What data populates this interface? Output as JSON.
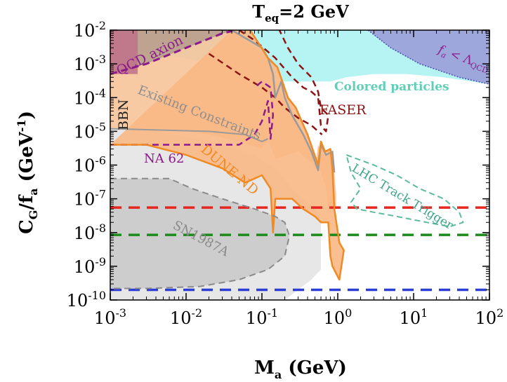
{
  "chart_data": {
    "type": "line",
    "title": "T",
    "title_sub": "eq",
    "title_rest": "=2 GeV",
    "xlabel": "M",
    "xlabel_sub": "a",
    "xlabel_unit": " (GeV)",
    "ylabel": "C",
    "ylabel_sub1": "G",
    "ylabel_mid": "/f",
    "ylabel_sub2": "a",
    "ylabel_unit": " (GeV",
    "ylabel_unit_sup": "-1",
    "ylabel_close": ")",
    "x_scale": "log",
    "y_scale": "log",
    "xlim": [
      0.001,
      100
    ],
    "ylim": [
      1e-10,
      0.01
    ],
    "x_ticks": [
      {
        "value": 0.001,
        "base": "10",
        "exp": "-3"
      },
      {
        "value": 0.01,
        "base": "10",
        "exp": "-2"
      },
      {
        "value": 0.1,
        "base": "10",
        "exp": "-1"
      },
      {
        "value": 1,
        "base": "10",
        "exp": "0"
      },
      {
        "value": 10,
        "base": "10",
        "exp": "1"
      },
      {
        "value": 100,
        "base": "10",
        "exp": "2"
      }
    ],
    "y_ticks": [
      {
        "value": 1e-10,
        "base": "10",
        "exp": "-10"
      },
      {
        "value": 1e-09,
        "base": "10",
        "exp": "-9"
      },
      {
        "value": 1e-08,
        "base": "10",
        "exp": "-8"
      },
      {
        "value": 1e-07,
        "base": "10",
        "exp": "-7"
      },
      {
        "value": 1e-06,
        "base": "10",
        "exp": "-6"
      },
      {
        "value": 1e-05,
        "base": "10",
        "exp": "-5"
      },
      {
        "value": 0.0001,
        "base": "10",
        "exp": "-4"
      },
      {
        "value": 0.001,
        "base": "10",
        "exp": "-3"
      },
      {
        "value": 0.01,
        "base": "10",
        "exp": "-2"
      }
    ],
    "hlines": [
      {
        "y": 5.5e-08,
        "color": "#e8261f"
      },
      {
        "y": 8.5e-09,
        "color": "#1c8a1c"
      },
      {
        "y": 2e-10,
        "color": "#2b3fd6"
      }
    ],
    "annotations": {
      "qcd_axion": "QCD axion",
      "bbn": "BBN",
      "existing": "Existing Constraints",
      "na62": "NA 62",
      "dune": "DUNE ND",
      "faser": "FASER",
      "colored": "Colored particles",
      "lhc": "LHC Track Trigger",
      "sn": "SN1987A",
      "fa_f": "f",
      "fa_sub": "a",
      "fa_lt": " < Λ",
      "fa_qcd": "QCD"
    },
    "regions": {
      "colored": {
        "color": "#aef3f3",
        "points": [
          [
            0.001,
            0.01
          ],
          [
            100,
            0.01
          ],
          [
            100,
            0.00025
          ],
          [
            25,
            0.0004
          ],
          [
            8,
            0.0005
          ],
          [
            3,
            0.0005
          ],
          [
            1.3,
            0.0004
          ],
          [
            0.8,
            0.0003
          ],
          [
            0.5,
            0.0003
          ],
          [
            0.2,
            0.0003
          ],
          [
            0.1,
            0.0005
          ],
          [
            0.03,
            0.001
          ],
          [
            0.001,
            0.003
          ]
        ]
      },
      "fa_region": {
        "color": "#9b9fd8",
        "points": [
          [
            2.5,
            0.01
          ],
          [
            100,
            0.01
          ],
          [
            100,
            0.00025
          ],
          [
            40,
            0.0004
          ],
          [
            12,
            0.001
          ],
          [
            5,
            0.003
          ],
          [
            2.5,
            0.01
          ]
        ]
      },
      "existing": {
        "color": "#f6c49a",
        "points": [
          [
            0.001,
            0.01
          ],
          [
            0.04,
            0.01
          ],
          [
            0.12,
            0.0015
          ],
          [
            0.14,
            0.0005
          ],
          [
            0.2,
            7e-05
          ],
          [
            0.25,
            3e-05
          ],
          [
            0.35,
            8e-06
          ],
          [
            0.45,
            2.5e-06
          ],
          [
            0.5,
            7e-07
          ],
          [
            0.55,
            4e-06
          ],
          [
            0.65,
            2e-06
          ],
          [
            0.8,
            2.5e-06
          ],
          [
            0.9,
            6e-07
          ],
          [
            0.95,
            1.5e-07
          ],
          [
            0.95,
            5e-08
          ],
          [
            0.75,
            5e-08
          ],
          [
            0.7,
            2e-07
          ],
          [
            0.6,
            6e-07
          ],
          [
            0.55,
            1.2e-06
          ],
          [
            0.5,
            1e-06
          ],
          [
            0.3,
            2.5e-06
          ],
          [
            0.15,
            1.5e-06
          ],
          [
            0.12,
            6e-06
          ],
          [
            0.1,
            3e-06
          ],
          [
            0.05,
            5e-06
          ],
          [
            0.02,
            8e-06
          ],
          [
            0.01,
            1e-05
          ],
          [
            0.005,
            1.2e-05
          ],
          [
            0.001,
            1.2e-05
          ]
        ]
      },
      "dune": {
        "color": "#f9b885",
        "points": [
          [
            0.04,
            0.01
          ],
          [
            0.07,
            0.01
          ],
          [
            0.12,
            0.0015
          ],
          [
            0.16,
            0.0008
          ],
          [
            0.22,
            0.0001
          ],
          [
            0.28,
            5e-05
          ],
          [
            0.4,
            8e-06
          ],
          [
            0.55,
            1e-06
          ],
          [
            0.6,
            5e-06
          ],
          [
            0.68,
            2.5e-06
          ],
          [
            0.8,
            3e-06
          ],
          [
            0.85,
            8e-07
          ],
          [
            0.9,
            5e-08
          ],
          [
            1.05,
            5e-09
          ],
          [
            1.2,
            3e-09
          ],
          [
            1.05,
            4e-10
          ],
          [
            0.85,
            1e-09
          ],
          [
            0.8,
            2e-09
          ],
          [
            0.75,
            2e-08
          ],
          [
            0.6,
            2e-08
          ],
          [
            0.5,
            3e-08
          ],
          [
            0.35,
            5e-08
          ],
          [
            0.25,
            1e-07
          ],
          [
            0.15,
            1e-07
          ],
          [
            0.14,
            1e-08
          ],
          [
            0.13,
            2e-07
          ],
          [
            0.1,
            5e-07
          ],
          [
            0.06,
            3e-07
          ],
          [
            0.03,
            8e-07
          ],
          [
            0.01,
            2e-06
          ],
          [
            0.003,
            4e-06
          ],
          [
            0.001,
            4e-06
          ]
        ]
      },
      "qcd_axion": {
        "color": "#b8a08e",
        "points": [
          [
            0.001,
            0.01
          ],
          [
            0.04,
            0.01
          ],
          [
            0.01,
            0.003
          ],
          [
            0.003,
            0.001
          ],
          [
            0.001,
            0.0005
          ]
        ]
      },
      "bbn": {
        "color": "#c0748a",
        "points": [
          [
            0.001,
            0.01
          ],
          [
            0.0023,
            0.01
          ],
          [
            0.0023,
            0.0005
          ],
          [
            0.001,
            0.0005
          ]
        ]
      },
      "sn": {
        "color": "#c8c8c8",
        "points": [
          [
            0.001,
            4e-07
          ],
          [
            0.006,
            4e-07
          ],
          [
            0.012,
            2e-07
          ],
          [
            0.03,
            1e-07
          ],
          [
            0.08,
            5e-08
          ],
          [
            0.15,
            3e-08
          ],
          [
            0.2,
            2e-08
          ],
          [
            0.23,
            8e-09
          ],
          [
            0.2,
            2e-09
          ],
          [
            0.12,
            8e-10
          ],
          [
            0.05,
            4e-10
          ],
          [
            0.015,
            2.5e-10
          ],
          [
            0.003,
            2.2e-10
          ],
          [
            0.001,
            2.2e-10
          ]
        ]
      },
      "light_gray": {
        "color": "#e4e4e4",
        "points": [
          [
            0.001,
            1.2e-05
          ],
          [
            0.003,
            1.2e-05
          ],
          [
            0.02,
            5e-06
          ],
          [
            0.08,
            2e-06
          ],
          [
            0.15,
            8e-07
          ],
          [
            0.25,
            2e-07
          ],
          [
            0.35,
            1e-07
          ],
          [
            0.5,
            5e-08
          ],
          [
            0.6,
            2e-08
          ],
          [
            0.6,
            8e-10
          ],
          [
            0.45,
            4e-10
          ],
          [
            0.3,
            2e-10
          ],
          [
            0.2,
            1e-10
          ],
          [
            0.001,
            1e-10
          ]
        ]
      }
    },
    "curves": {
      "qcd_axion": {
        "color": "#8b1a8b",
        "width": 3,
        "dash": "10,6",
        "points": [
          [
            0.001,
            0.0005
          ],
          [
            0.003,
            0.001
          ],
          [
            0.01,
            0.003
          ],
          [
            0.03,
            0.008
          ],
          [
            0.045,
            0.01
          ]
        ]
      },
      "faser_outer": {
        "color": "#8b1414",
        "width": 2.5,
        "dash": "9,6",
        "points": [
          [
            0.05,
            0.01
          ],
          [
            0.08,
            0.005
          ],
          [
            0.15,
            0.0015
          ],
          [
            0.25,
            0.0004
          ],
          [
            0.35,
            0.0002
          ],
          [
            0.45,
            0.00015
          ],
          [
            0.55,
            0.0001
          ],
          [
            0.6,
            1.5e-05
          ],
          [
            0.7,
            1e-05
          ],
          [
            0.75,
            3e-05
          ],
          [
            0.6,
            5e-05
          ],
          [
            0.55,
            0.00015
          ],
          [
            0.45,
            0.0004
          ],
          [
            0.3,
            0.001
          ],
          [
            0.22,
            0.003
          ],
          [
            0.17,
            0.01
          ]
        ]
      },
      "faser_inner": {
        "color": "#8b1414",
        "width": 2.5,
        "dash": "9,6",
        "points": [
          [
            0.02,
            0.002
          ],
          [
            0.05,
            0.0005
          ],
          [
            0.1,
            0.0002
          ],
          [
            0.15,
            0.0001
          ],
          [
            0.2,
            5e-05
          ],
          [
            0.3,
            2.5e-05
          ],
          [
            0.45,
            1.5e-05
          ],
          [
            0.55,
            1e-05
          ],
          [
            0.62,
            8e-06
          ]
        ]
      },
      "na62": {
        "color": "#8b1a8b",
        "width": 2.5,
        "dash": "9,6",
        "points": [
          [
            0.001,
            4e-06
          ],
          [
            0.02,
            4e-06
          ],
          [
            0.05,
            4e-06
          ],
          [
            0.08,
            8e-06
          ],
          [
            0.1,
            2e-05
          ],
          [
            0.12,
            8e-05
          ],
          [
            0.13,
            6e-06
          ],
          [
            0.14,
            3e-05
          ],
          [
            0.13,
            0.0002
          ],
          [
            0.1,
            0.0003
          ],
          [
            0.08,
            0.0002
          ]
        ]
      },
      "existing": {
        "color": "#9a9a9a",
        "width": 2.5,
        "dash": "",
        "points": [
          [
            0.04,
            0.01
          ],
          [
            0.1,
            0.003
          ],
          [
            0.12,
            0.0015
          ],
          [
            0.14,
            0.0005
          ],
          [
            0.15,
            0.0001
          ],
          [
            0.18,
            0.0003
          ],
          [
            0.2,
            0.0001
          ],
          [
            0.25,
            3e-05
          ],
          [
            0.35,
            8e-06
          ],
          [
            0.45,
            2.5e-06
          ],
          [
            0.55,
            7e-07
          ],
          [
            0.6,
            4e-06
          ],
          [
            0.7,
            2e-06
          ],
          [
            0.85,
            2.5e-06
          ],
          [
            0.9,
            6e-07
          ]
        ]
      },
      "existing_low": {
        "color": "#9a9a9a",
        "width": 2,
        "dash": "",
        "points": [
          [
            0.001,
            1.2e-05
          ],
          [
            0.02,
            1e-05
          ],
          [
            0.06,
            8e-06
          ],
          [
            0.1,
            5e-06
          ],
          [
            0.12,
            6e-06
          ]
        ]
      },
      "dune_outline": {
        "color": "#f08a24",
        "width": 2.5,
        "dash": "",
        "points": [
          [
            0.07,
            0.01
          ],
          [
            0.12,
            0.0015
          ],
          [
            0.16,
            0.0008
          ],
          [
            0.22,
            0.0001
          ],
          [
            0.28,
            5e-05
          ],
          [
            0.4,
            8e-06
          ],
          [
            0.55,
            1e-06
          ],
          [
            0.6,
            5e-06
          ],
          [
            0.68,
            2.5e-06
          ],
          [
            0.8,
            3e-06
          ],
          [
            0.85,
            8e-07
          ],
          [
            0.9,
            5e-08
          ],
          [
            1.05,
            5e-09
          ],
          [
            1.2,
            3e-09
          ],
          [
            1.05,
            4e-10
          ],
          [
            0.85,
            1e-09
          ],
          [
            0.8,
            2e-09
          ],
          [
            0.75,
            2e-08
          ],
          [
            0.6,
            2e-08
          ],
          [
            0.5,
            3e-08
          ],
          [
            0.35,
            5e-08
          ],
          [
            0.25,
            1e-07
          ],
          [
            0.15,
            1e-07
          ],
          [
            0.14,
            1e-08
          ],
          [
            0.13,
            2e-07
          ],
          [
            0.1,
            5e-07
          ],
          [
            0.06,
            3e-07
          ],
          [
            0.03,
            8e-07
          ],
          [
            0.01,
            2e-06
          ],
          [
            0.003,
            4e-06
          ],
          [
            0.001,
            4e-06
          ]
        ]
      },
      "lhc": {
        "color": "#5bbaa0",
        "width": 2,
        "dash": "8,5",
        "points": [
          [
            1.3,
            2e-06
          ],
          [
            3,
            1e-06
          ],
          [
            6,
            5e-07
          ],
          [
            12,
            2e-07
          ],
          [
            25,
            1e-07
          ],
          [
            40,
            4e-08
          ],
          [
            45,
            2e-08
          ],
          [
            30,
            1.5e-08
          ],
          [
            15,
            2e-08
          ],
          [
            6,
            3e-08
          ],
          [
            3,
            4e-08
          ],
          [
            1.8,
            5e-08
          ],
          [
            1.5,
            8e-08
          ],
          [
            2,
            2e-07
          ],
          [
            1.5,
            6e-07
          ],
          [
            1.3,
            2e-06
          ]
        ]
      },
      "sn": {
        "color": "#8a8a8a",
        "width": 2,
        "dash": "9,6",
        "points": [
          [
            0.001,
            4e-07
          ],
          [
            0.006,
            4e-07
          ],
          [
            0.012,
            2e-07
          ],
          [
            0.03,
            1e-07
          ],
          [
            0.08,
            5e-08
          ],
          [
            0.15,
            3e-08
          ],
          [
            0.2,
            2e-08
          ],
          [
            0.23,
            8e-09
          ],
          [
            0.2,
            2e-09
          ],
          [
            0.12,
            8e-10
          ],
          [
            0.05,
            4e-10
          ],
          [
            0.015,
            2.5e-10
          ],
          [
            0.003,
            2.2e-10
          ],
          [
            0.001,
            2.2e-10
          ]
        ]
      },
      "fa_line": {
        "color": "#4a4ab0",
        "width": 1.5,
        "dash": "2,2",
        "points": [
          [
            2.5,
            0.01
          ],
          [
            5,
            0.003
          ],
          [
            12,
            0.001
          ],
          [
            40,
            0.0004
          ],
          [
            100,
            0.00025
          ]
        ]
      }
    }
  }
}
